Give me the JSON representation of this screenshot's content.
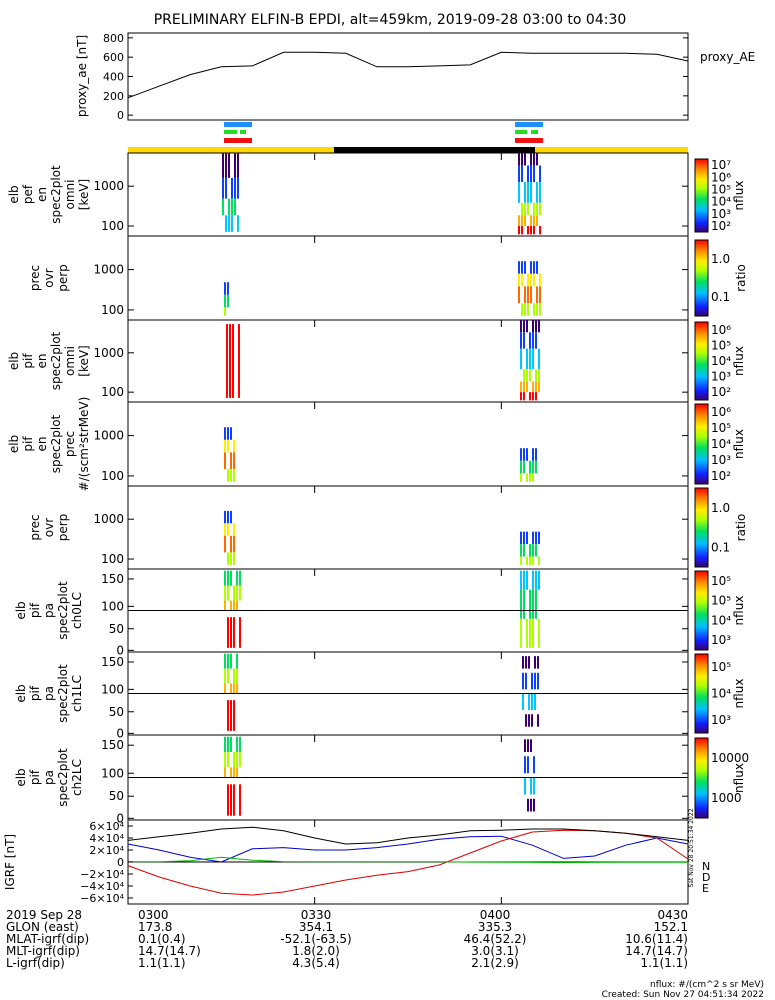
{
  "title": "PRELIMINARY ELFIN-B EPDI, alt=459km, 2019-09-28 03:00 to 04:30",
  "colors": {
    "blue_bar": "#1e90ff",
    "green_bar": "#22dd22",
    "red_bar": "#ee1111",
    "day_bar": "#ffd700",
    "night_bar": "#000000",
    "igrf_n": "#0000cc",
    "igrf_d": "#dd0000",
    "igrf_e": "#00bb00"
  },
  "chart_data": [
    {
      "type": "line",
      "name": "proxy_ae",
      "ylabel": "proxy_ae [nT]",
      "legend": "proxy_AE",
      "yticks": [
        "800",
        "600",
        "400",
        "200",
        "0"
      ],
      "ylim": [
        -50,
        850
      ],
      "x": [
        "03:00",
        "03:05",
        "03:10",
        "03:15",
        "03:20",
        "03:25",
        "03:30",
        "03:35",
        "03:40",
        "03:45",
        "03:50",
        "03:55",
        "04:00",
        "04:05",
        "04:10",
        "04:15",
        "04:20",
        "04:25",
        "04:30"
      ],
      "values": [
        180,
        300,
        420,
        500,
        510,
        650,
        650,
        640,
        500,
        500,
        510,
        520,
        650,
        640,
        640,
        640,
        640,
        630,
        560
      ]
    },
    {
      "type": "heatmap",
      "name": "elb_pef_en_spec2plot_omni",
      "ylabel": [
        "elb",
        "pef",
        "en",
        "spec2plot",
        "omni",
        "[keV]"
      ],
      "yticks": [
        "1000",
        "100"
      ],
      "colorbar": {
        "label": "nflux",
        "ticks": [
          "10⁷",
          "10⁶",
          "10⁵",
          "10⁴",
          "10³",
          "10²"
        ]
      }
    },
    {
      "type": "heatmap",
      "name": "prec_ovr_perp",
      "ylabel": [
        "prec",
        "ovr",
        "perp"
      ],
      "yticks": [
        "1000",
        "100"
      ],
      "colorbar": {
        "label": "ratio",
        "ticks": [
          "1.0",
          "0.1"
        ]
      }
    },
    {
      "type": "heatmap",
      "name": "elb_pif_en_spec2plot_omni",
      "ylabel": [
        "elb",
        "pif",
        "en",
        "spec2plot",
        "omni",
        "[keV]"
      ],
      "yticks": [
        "1000",
        "100"
      ],
      "colorbar": {
        "label": "nflux",
        "ticks": [
          "10⁶",
          "10⁵",
          "10⁴",
          "10³",
          "10²"
        ]
      }
    },
    {
      "type": "heatmap",
      "name": "elb_pif_en_spec2plot_prec",
      "ylabel": [
        "elb",
        "pif",
        "en",
        "spec2plot",
        "prec",
        "#/(scm²strMeV)"
      ],
      "yticks": [
        "1000",
        "100"
      ],
      "colorbar": {
        "label": "nflux",
        "ticks": [
          "10⁶",
          "10⁵",
          "10⁴",
          "10³",
          "10²"
        ]
      }
    },
    {
      "type": "heatmap",
      "name": "prec_ovr_perp_2",
      "ylabel": [
        "prec",
        "ovr",
        "perp"
      ],
      "yticks": [
        "1000",
        "100"
      ],
      "colorbar": {
        "label": "ratio",
        "ticks": [
          "1.0",
          "0.1"
        ]
      }
    },
    {
      "type": "heatmap",
      "name": "elb_pif_pa_spec2plot_ch0LC",
      "ylabel": [
        "elb",
        "pif",
        "pa",
        "spec2plot",
        "ch0LC"
      ],
      "yticks": [
        "150",
        "100",
        "50",
        "0"
      ],
      "colorbar": {
        "label": "nflux",
        "ticks": [
          "10⁵",
          "10⁵",
          "10⁴",
          "10³"
        ]
      }
    },
    {
      "type": "heatmap",
      "name": "elb_pif_pa_spec2plot_ch1LC",
      "ylabel": [
        "elb",
        "pif",
        "pa",
        "spec2plot",
        "ch1LC"
      ],
      "yticks": [
        "150",
        "100",
        "50",
        "0"
      ],
      "colorbar": {
        "label": "nflux",
        "ticks": [
          "10⁵",
          "10⁴",
          "10³"
        ]
      }
    },
    {
      "type": "heatmap",
      "name": "elb_pif_pa_spec2plot_ch2LC",
      "ylabel": [
        "elb",
        "pif",
        "pa",
        "spec2plot",
        "ch2LC"
      ],
      "yticks": [
        "150",
        "100",
        "50",
        "0"
      ],
      "colorbar": {
        "label": "nflux",
        "ticks": [
          "10000",
          "1000"
        ]
      }
    },
    {
      "type": "line",
      "name": "IGRF",
      "ylabel": "IGRF [nT]",
      "yticks": [
        "6×10⁴",
        "4×10⁴",
        "2×10⁴",
        "0",
        "−2×10⁴",
        "−4×10⁴",
        "−6×10⁴"
      ],
      "ylim": [
        -70000,
        70000
      ],
      "legend": [
        "N",
        "D",
        "E"
      ],
      "x": [
        "03:00",
        "03:05",
        "03:10",
        "03:15",
        "03:20",
        "03:25",
        "03:30",
        "03:35",
        "03:40",
        "03:45",
        "03:50",
        "03:55",
        "04:00",
        "04:05",
        "04:10",
        "04:15",
        "04:20",
        "04:25",
        "04:30"
      ],
      "series": [
        {
          "name": "N",
          "values": [
            30000,
            20000,
            8000,
            0,
            22000,
            24000,
            20000,
            20000,
            24000,
            30000,
            38000,
            42000,
            43000,
            28000,
            6000,
            10000,
            28000,
            40000,
            30000
          ]
        },
        {
          "name": "D",
          "values": [
            -6000,
            -25000,
            -40000,
            -52000,
            -55000,
            -50000,
            -40000,
            -30000,
            -22000,
            -16000,
            -5000,
            15000,
            35000,
            50000,
            53000,
            52000,
            48000,
            40000,
            5000
          ]
        },
        {
          "name": "E",
          "values": [
            300,
            500,
            2000,
            8000,
            3000,
            600,
            500,
            500,
            500,
            400,
            300,
            -200,
            -300,
            -700,
            -1000,
            -600,
            -400,
            -300,
            -500
          ]
        },
        {
          "name": "B",
          "values": [
            36000,
            42000,
            48000,
            55000,
            58000,
            52000,
            40000,
            30000,
            32000,
            40000,
            45000,
            52000,
            53000,
            55000,
            55000,
            52000,
            48000,
            42000,
            36000
          ]
        }
      ]
    }
  ],
  "time_ticks": [
    "0300",
    "0330",
    "0400",
    "0430"
  ],
  "footer": {
    "rows": [
      {
        "label": "2019 Sep 28",
        "values": [
          "0300",
          "0330",
          "0400",
          "0430"
        ]
      },
      {
        "label": "GLON (east)",
        "values": [
          "173.8",
          "354.1",
          "335.3",
          "152.1"
        ]
      },
      {
        "label": "MLAT-igrf(dip)",
        "values": [
          "0.1(0.4)",
          "-52.1(-63.5)",
          "46.4(52.2)",
          "10.6(11.4)"
        ]
      },
      {
        "label": "MLT-igrf(dip)",
        "values": [
          "14.7(14.7)",
          "1.8(2.0)",
          "3.0(3.1)",
          "14.7(14.7)"
        ]
      },
      {
        "label": "L-igrf(dip)",
        "values": [
          "1.1(1.1)",
          "4.3(5.4)",
          "2.1(2.9)",
          "1.1(1.1)"
        ]
      }
    ],
    "units": "nflux: #/(cm^2 s sr MeV)",
    "created": "Created: Sun Nov 27 04:51:34 2022",
    "side_stamp": "Sat Nov 28 20:51:34 2022"
  }
}
